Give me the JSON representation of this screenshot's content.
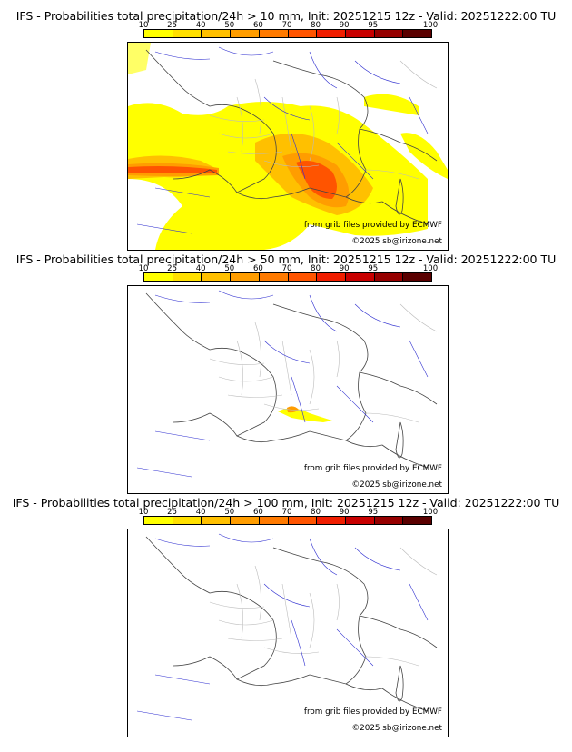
{
  "colors": {
    "scale": [
      "#ffff00",
      "#ffe000",
      "#ffc000",
      "#ff9d00",
      "#ff7a00",
      "#ff5400",
      "#f01e00",
      "#c80000",
      "#960000",
      "#5a0000"
    ],
    "border": "#444444",
    "regions": "#bbbbbb",
    "rivers": "#3030d0"
  },
  "scale_ticks": [
    "10",
    "25",
    "40",
    "50",
    "60",
    "70",
    "80",
    "90",
    "95",
    "100"
  ],
  "panels": [
    {
      "title": "IFS - Probabilities total precipitation/24h > 10 mm, Init: 20251215 12z - Valid: 20251222:00 TU",
      "credit_source": "from grib files provided by ECMWF",
      "credit_copyright": "©2025 sb@irizone.net"
    },
    {
      "title": "IFS - Probabilities total precipitation/24h > 50 mm, Init: 20251215 12z - Valid: 20251222:00 TU",
      "credit_source": "from grib files provided by ECMWF",
      "credit_copyright": "©2025 sb@irizone.net"
    },
    {
      "title": "IFS - Probabilities total precipitation/24h > 100 mm, Init: 20251215 12z - Valid: 20251222:00 TU",
      "credit_source": "from grib files provided by ECMWF",
      "credit_copyright": "©2025 sb@irizone.net"
    }
  ]
}
